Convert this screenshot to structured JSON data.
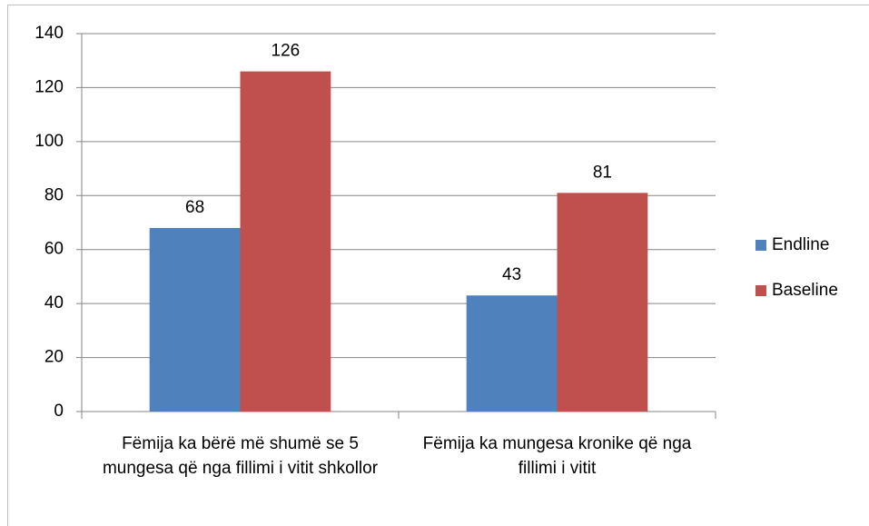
{
  "chart_data": {
    "type": "bar",
    "categories": [
      "Fëmija ka bërë më shumë se 5 mungesa që nga fillimi i vitit shkollor",
      "Fëmija ka mungesa kronike që nga fillimi i vitit"
    ],
    "series": [
      {
        "name": "Endline",
        "color": "#4f81bd",
        "values": [
          68,
          43
        ]
      },
      {
        "name": "Baseline",
        "color": "#c0504d",
        "values": [
          126,
          81
        ]
      }
    ],
    "ylim": [
      0,
      140
    ],
    "yticks": [
      0,
      20,
      40,
      60,
      80,
      100,
      120,
      140
    ],
    "grid": true,
    "legend": "right"
  }
}
